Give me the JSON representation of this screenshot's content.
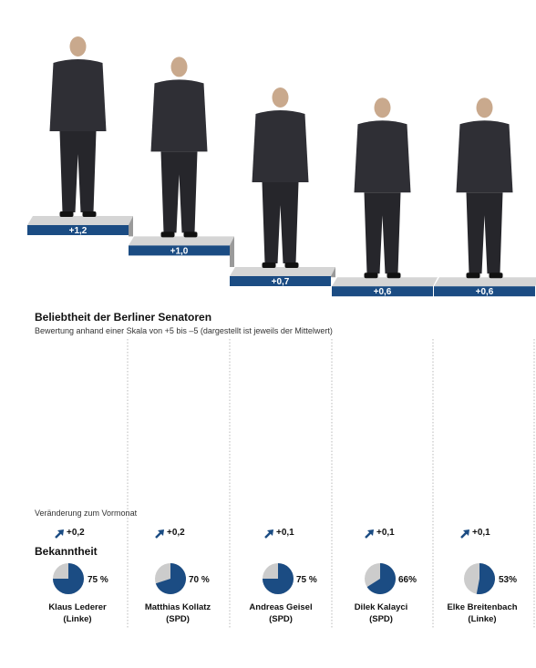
{
  "chart_data": {
    "type": "bar",
    "title": "Beliebtheit der Berliner Senatoren",
    "subtitle": "Bewertung anhand einer Skala von +5 bis –5 (dargestellt ist jeweils der Mittelwert)",
    "categories": [
      "Klaus Lederer",
      "Matthias Kollatz",
      "Andreas Geisel",
      "Dilek Kalayci",
      "Elke Breitenbach"
    ],
    "parties": [
      "(Linke)",
      "(SPD)",
      "(SPD)",
      "(SPD)",
      "(Linke)"
    ],
    "values": [
      1.2,
      1.0,
      0.7,
      0.6,
      0.6
    ],
    "value_labels": [
      "+1,2",
      "+1,0",
      "+0,7",
      "+0,6",
      "+0,6"
    ],
    "change_title": "Veränderung zum Vormonat",
    "changes": [
      0.2,
      0.2,
      0.1,
      0.1,
      0.1
    ],
    "change_labels": [
      "+0,2",
      "+0,2",
      "+0,1",
      "+0,1",
      "+0,1"
    ],
    "known_title": "Bekanntheit",
    "bekanntheit": [
      75,
      70,
      75,
      66,
      53
    ],
    "bekanntheit_labels": [
      "75 %",
      "70 %",
      "75 %",
      "66%",
      "53%"
    ],
    "colors": {
      "bar": "#1b4c83",
      "step": "#d5d5d5",
      "step_side": "#9a9a9a",
      "pie_fill": "#1b4c83",
      "pie_rest": "#cccccc",
      "arrow": "#1b4c83"
    }
  }
}
